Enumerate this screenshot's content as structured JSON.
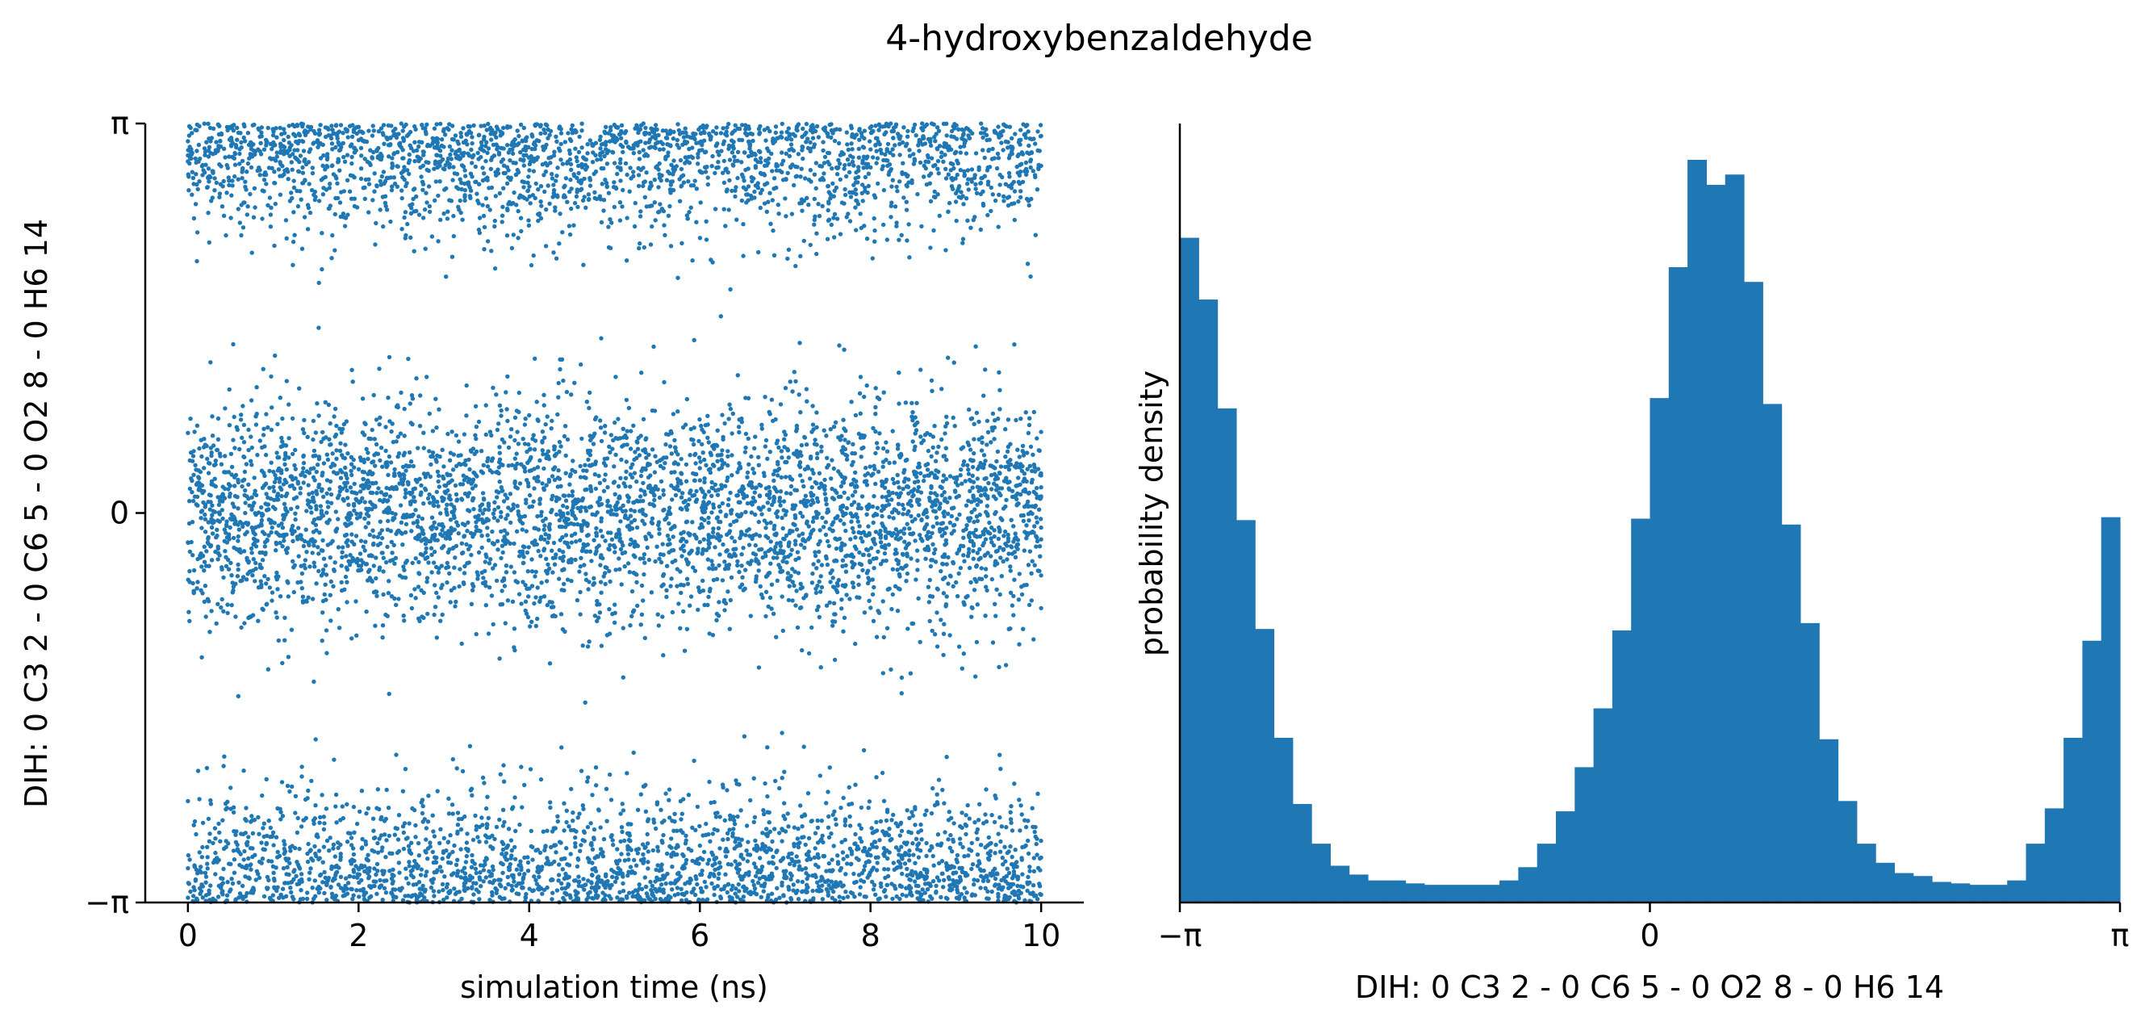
{
  "figure": {
    "title": "4-hydroxybenzaldehyde"
  },
  "chart_data": [
    {
      "type": "scatter",
      "title": "",
      "xlabel": "simulation time (ns)",
      "ylabel": "DIH:  0 C3 2 -  0 C6 5 -  0 O2 8 -  0 H6 14",
      "xlim": [
        -0.5,
        10.5
      ],
      "ylim": [
        -3.14159,
        3.14159
      ],
      "x_ticks": [
        0,
        2,
        4,
        6,
        8,
        10
      ],
      "x_tick_labels": [
        "0",
        "2",
        "4",
        "6",
        "8",
        "10"
      ],
      "y_ticks": [
        -3.14159,
        0,
        3.14159
      ],
      "y_tick_labels": [
        "−π",
        "0",
        "π"
      ],
      "grid": false,
      "color": "#1f77b4",
      "n_points": 9000,
      "distribution": {
        "description": "dihedral samples clustered near 0 and near ±π over 0–10 ns",
        "clusters": [
          {
            "center": 0,
            "sd": 0.45,
            "weight": 0.46
          },
          {
            "center": 3.14159,
            "sd": 0.42,
            "weight": 0.27
          },
          {
            "center": -3.14159,
            "sd": 0.42,
            "weight": 0.27
          }
        ]
      }
    },
    {
      "type": "bar",
      "title": "",
      "xlabel": "DIH:  0 C3 2 -  0 C6 5 -  0 O2 8 -  0 H6 14",
      "ylabel": "probability density",
      "xlim": [
        -3.14159,
        3.14159
      ],
      "x_ticks": [
        -3.14159,
        0,
        3.14159
      ],
      "x_tick_labels": [
        "−π",
        "0",
        "π"
      ],
      "grid": false,
      "color": "#1f77b4",
      "bins": 50,
      "values": [
        0.452,
        0.41,
        0.336,
        0.26,
        0.186,
        0.112,
        0.067,
        0.04,
        0.025,
        0.019,
        0.015,
        0.015,
        0.013,
        0.012,
        0.012,
        0.012,
        0.012,
        0.015,
        0.024,
        0.04,
        0.062,
        0.092,
        0.132,
        0.185,
        0.261,
        0.343,
        0.432,
        0.505,
        0.488,
        0.495,
        0.422,
        0.339,
        0.257,
        0.19,
        0.111,
        0.069,
        0.04,
        0.027,
        0.02,
        0.018,
        0.014,
        0.013,
        0.012,
        0.012,
        0.015,
        0.04,
        0.064,
        0.112,
        0.178,
        0.262
      ]
    }
  ]
}
